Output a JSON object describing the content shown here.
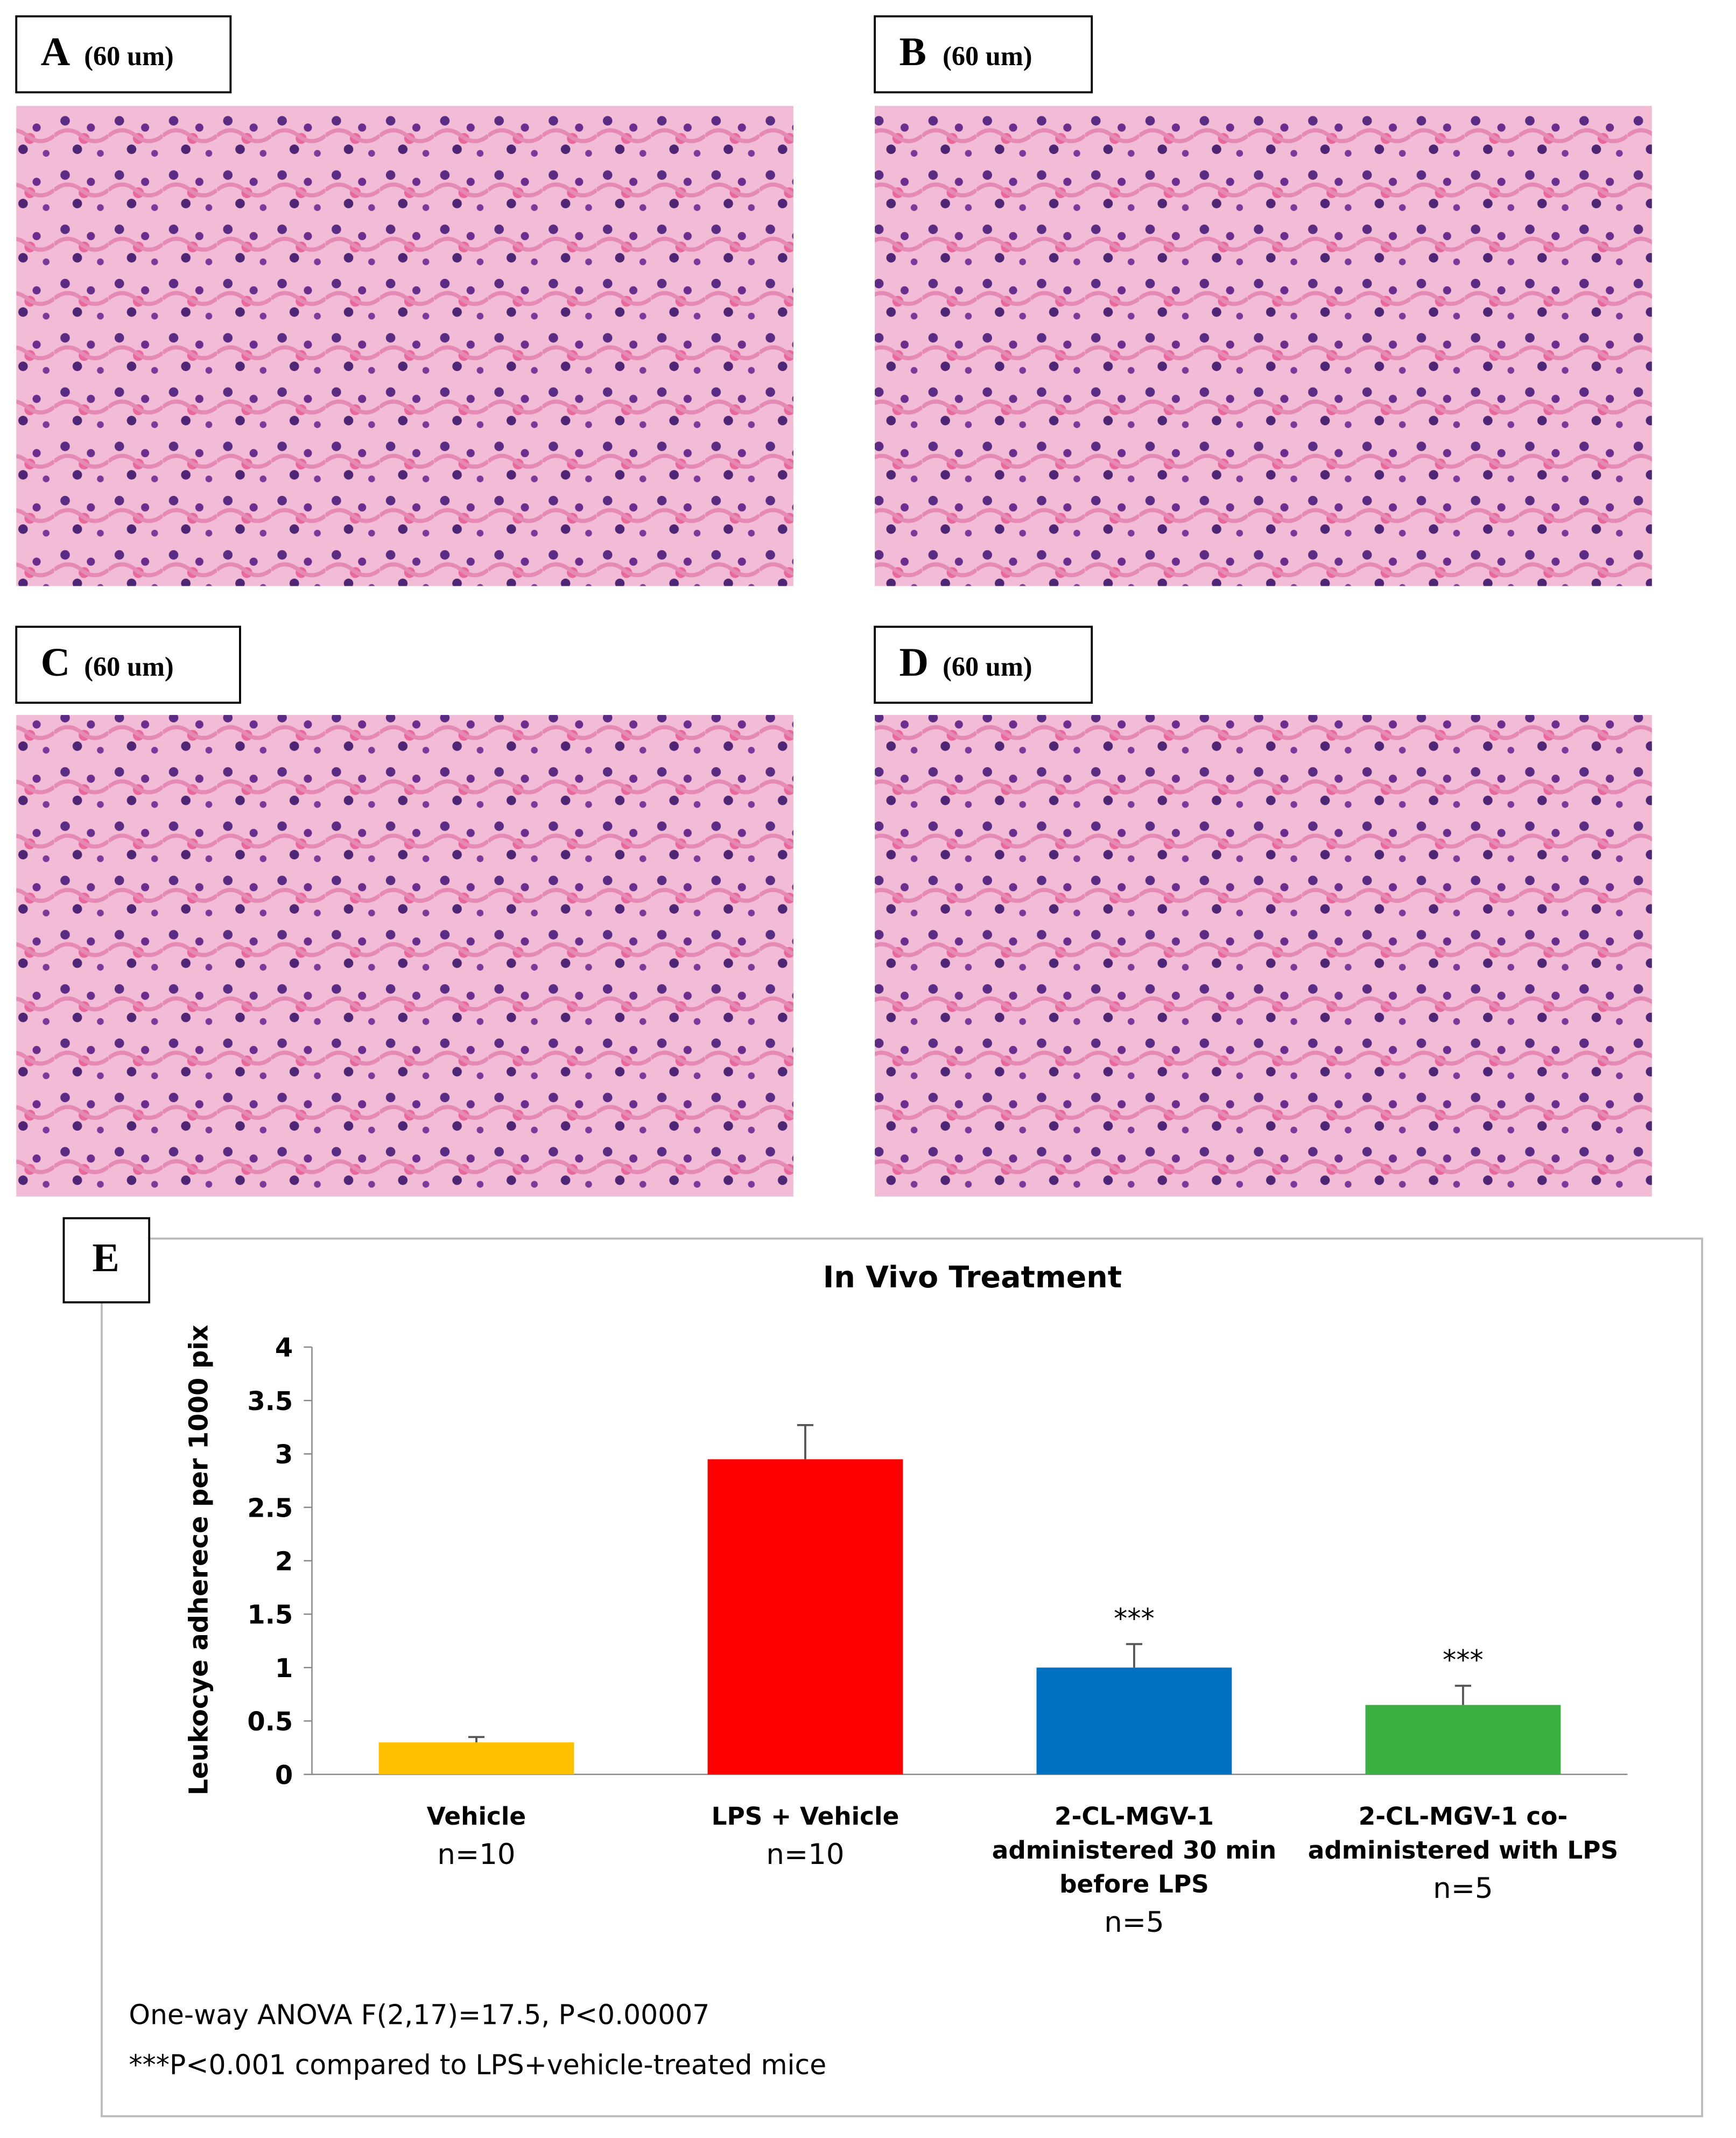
{
  "panels": [
    {
      "letter": "A",
      "scale": "(60 um)"
    },
    {
      "letter": "B",
      "scale": "(60 um)"
    },
    {
      "letter": "C",
      "scale": "(60 um)"
    },
    {
      "letter": "D",
      "scale": "(60 um)"
    }
  ],
  "chart_panel_letter": "E",
  "chart_data": {
    "type": "bar",
    "title": "In Vivo Treatment",
    "y_label": "Leukocye adherece per 1000 pix",
    "categories": [
      [
        "Vehicle"
      ],
      [
        "LPS + Vehicle"
      ],
      [
        "2-CL-MGV-1",
        "administered 30 min",
        "before LPS"
      ],
      [
        "2-CL-MGV-1 co-",
        "administered with LPS"
      ]
    ],
    "group_sizes": [
      "n=10",
      "n=10",
      "n=5",
      "n=5"
    ],
    "values": [
      0.3,
      2.95,
      1.0,
      0.65
    ],
    "errors": [
      0.05,
      0.32,
      0.22,
      0.18
    ],
    "significance": [
      null,
      null,
      "***",
      "***"
    ],
    "colors": [
      "#ffc000",
      "#ff0000",
      "#0070c0",
      "#3cb043"
    ],
    "ylim": [
      0,
      4
    ],
    "yticks": [
      0,
      0.5,
      1,
      1.5,
      2,
      2.5,
      3,
      3.5,
      4
    ],
    "notes": [
      "One-way ANOVA F(2,17)=17.5, P<0.00007",
      "***P<0.001 compared to LPS+vehicle-treated mice"
    ]
  }
}
